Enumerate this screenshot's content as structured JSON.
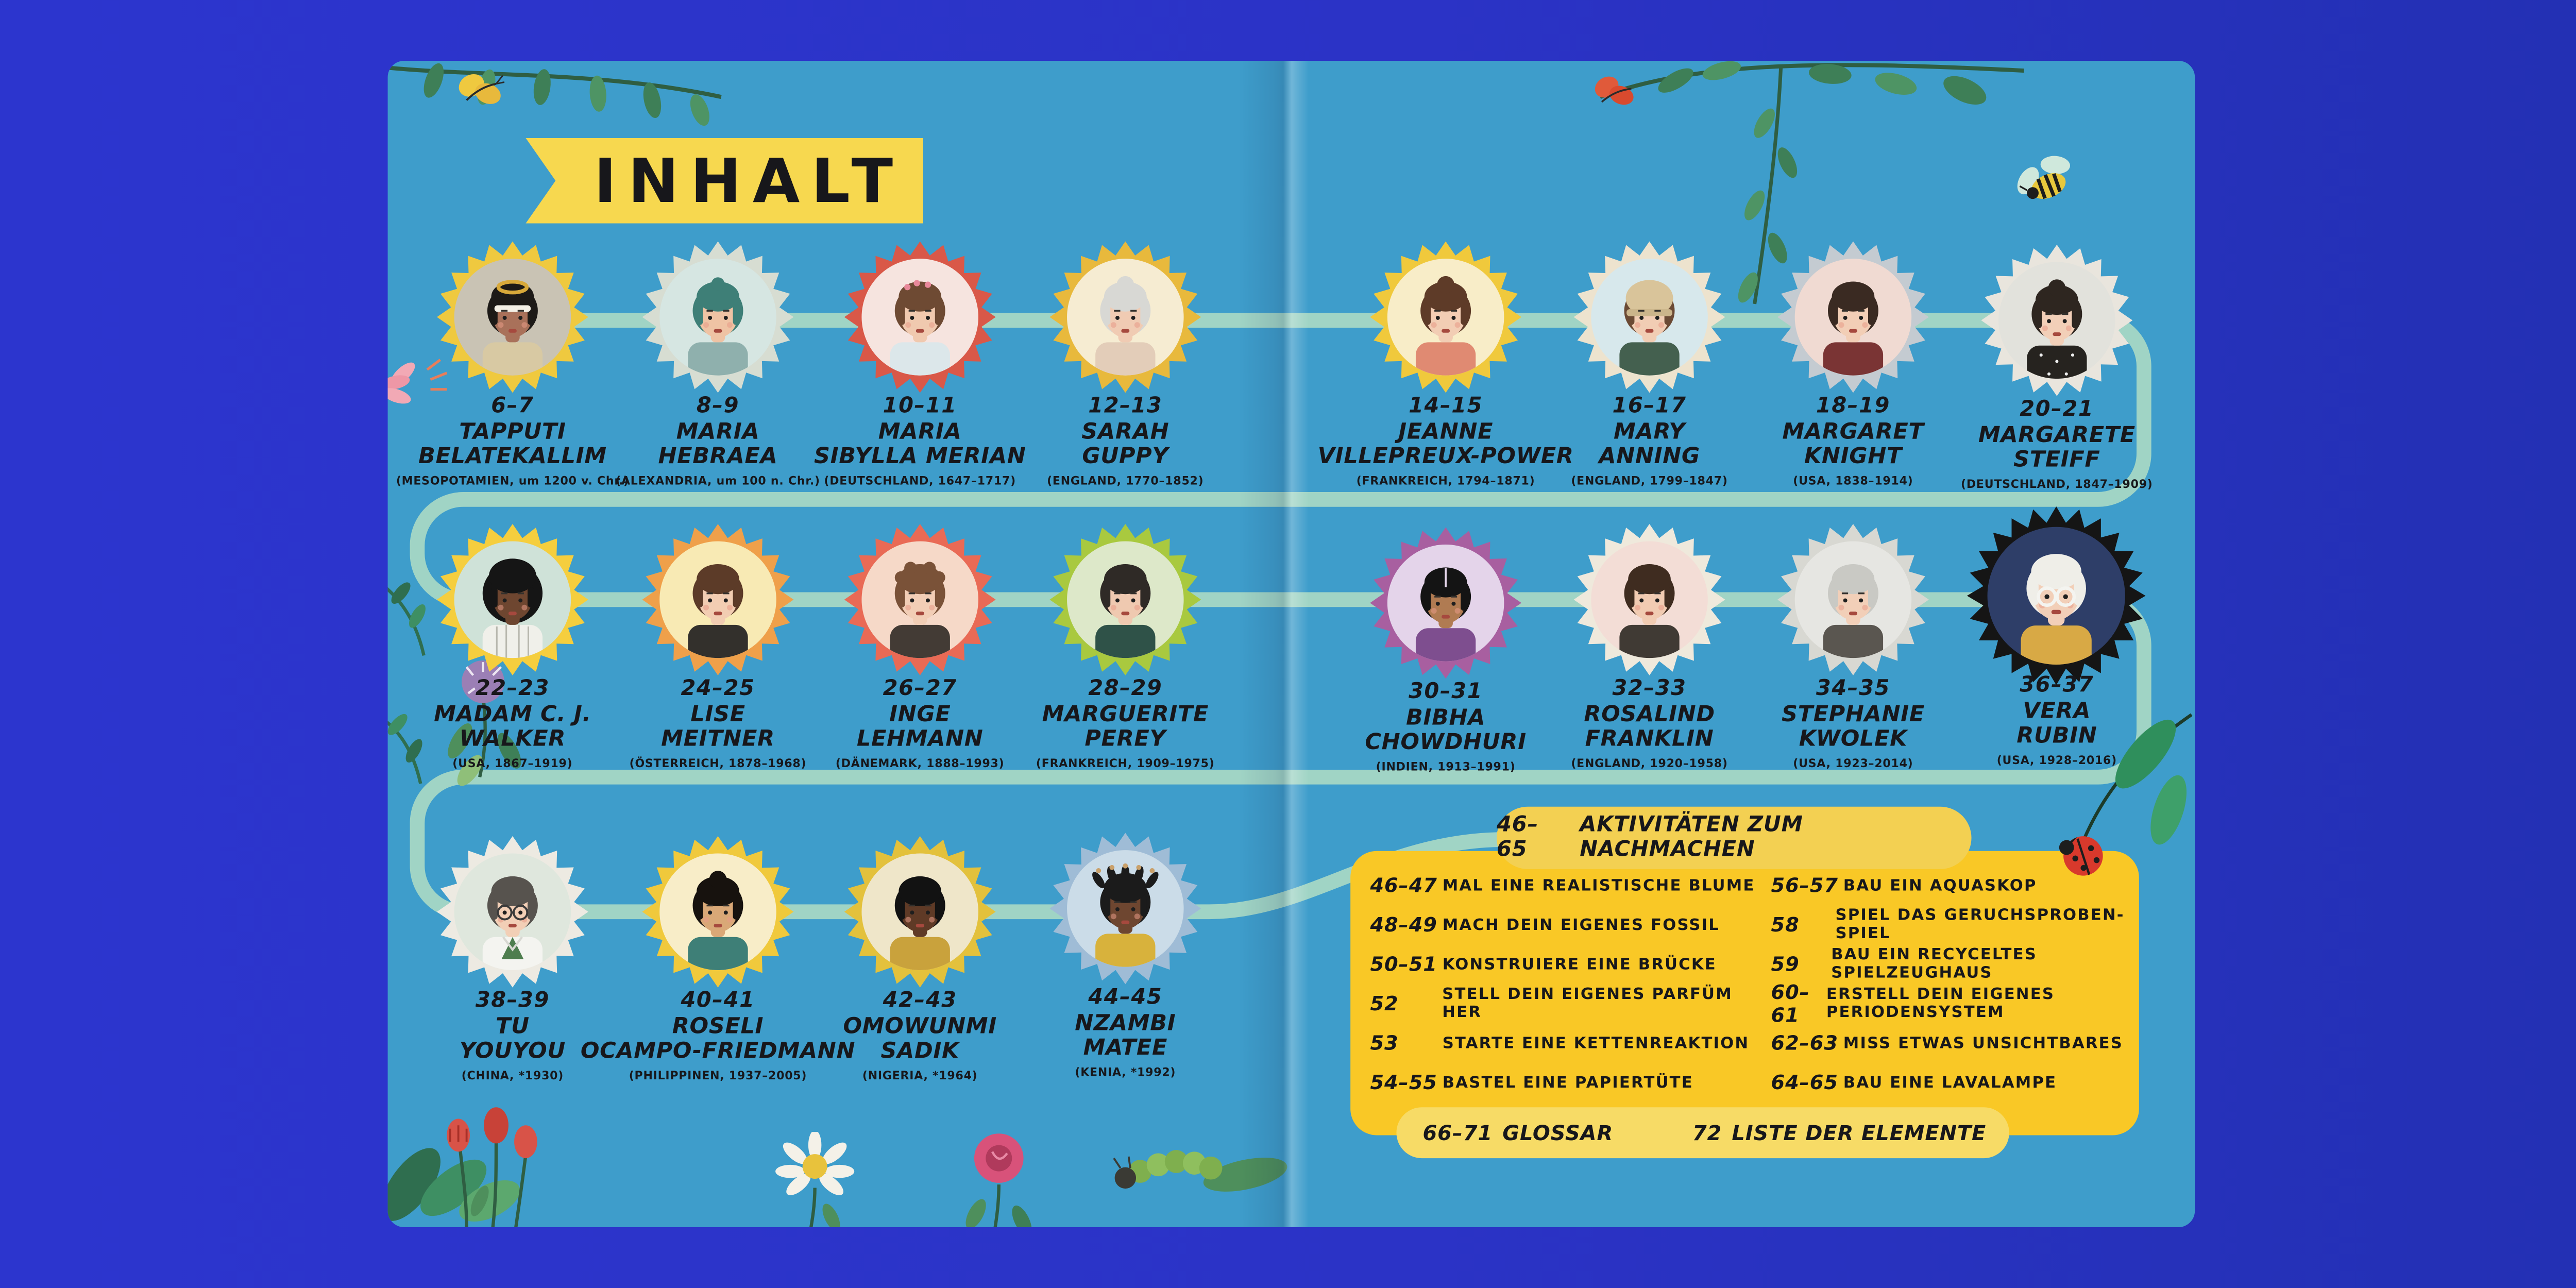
{
  "title_banner": {
    "label": "INHALT"
  },
  "people": [
    {
      "pages": "6–7",
      "name": "TAPPUTI BELATEKALLIM",
      "caption": "(MESOPOTAMIEN, um 1200 v. Chr.)"
    },
    {
      "pages": "8–9",
      "name": "MARIA HEBRAEA",
      "caption": "(ALEXANDRIA, um 100 n. Chr.)"
    },
    {
      "pages": "10–11",
      "name": "MARIA SIBYLLA MERIAN",
      "caption": "(DEUTSCHLAND, 1647–1717)"
    },
    {
      "pages": "12–13",
      "name": "SARAH GUPPY",
      "caption": "(ENGLAND, 1770–1852)"
    },
    {
      "pages": "14–15",
      "name": "JEANNE VILLEPREUX-POWER",
      "caption": "(FRANKREICH, 1794–1871)"
    },
    {
      "pages": "16–17",
      "name": "MARY ANNING",
      "caption": "(ENGLAND, 1799–1847)"
    },
    {
      "pages": "18–19",
      "name": "MARGARET KNIGHT",
      "caption": "(USA, 1838–1914)"
    },
    {
      "pages": "20–21",
      "name": "MARGARETE STEIFF",
      "caption": "(DEUTSCHLAND, 1847–1909)"
    },
    {
      "pages": "22–23",
      "name": "MADAM C. J. WALKER",
      "caption": "(USA, 1867–1919)"
    },
    {
      "pages": "24–25",
      "name": "LISE MEITNER",
      "caption": "(ÖSTERREICH, 1878–1968)"
    },
    {
      "pages": "26–27",
      "name": "INGE LEHMANN",
      "caption": "(DÄNEMARK, 1888–1993)"
    },
    {
      "pages": "28–29",
      "name": "MARGUERITE PEREY",
      "caption": "(FRANKREICH, 1909–1975)"
    },
    {
      "pages": "30–31",
      "name": "BIBHA CHOWDHURI",
      "caption": "(INDIEN, 1913–1991)"
    },
    {
      "pages": "32–33",
      "name": "ROSALIND FRANKLIN",
      "caption": "(ENGLAND, 1920–1958)"
    },
    {
      "pages": "34–35",
      "name": "STEPHANIE KWOLEK",
      "caption": "(USA, 1923–2014)"
    },
    {
      "pages": "36–37",
      "name": "VERA RUBIN",
      "caption": "(USA, 1928–2016)"
    },
    {
      "pages": "38–39",
      "name": "TU YOUYOU",
      "caption": "(CHINA, *1930)"
    },
    {
      "pages": "40–41",
      "name": "ROSELI OCAMPO-FRIEDMANN",
      "caption": "(PHILIPPINEN, 1937–2005)"
    },
    {
      "pages": "42–43",
      "name": "OMOWUNMI SADIK",
      "caption": "(NIGERIA, *1964)"
    },
    {
      "pages": "44–45",
      "name": "NZAMBI MATEE",
      "caption": "(KENIA, *1992)"
    }
  ],
  "activities_box": {
    "header": {
      "pages": "46–65",
      "title": "AKTIVITÄTEN ZUM NACHMACHEN"
    },
    "left_column": [
      {
        "pages": "46–47",
        "title": "MAL EINE REALISTISCHE BLUME"
      },
      {
        "pages": "48–49",
        "title": "MACH DEIN EIGENES FOSSIL"
      },
      {
        "pages": "50–51",
        "title": "KONSTRUIERE EINE BRÜCKE"
      },
      {
        "pages": "52",
        "title": "STELL DEIN EIGENES PARFÜM HER"
      },
      {
        "pages": "53",
        "title": "STARTE EINE KETTENREAKTION"
      },
      {
        "pages": "54–55",
        "title": "BASTEL EINE PAPIERTÜTE"
      }
    ],
    "right_column": [
      {
        "pages": "56–57",
        "title": "BAU EIN AQUASKOP"
      },
      {
        "pages": "58",
        "title": "SPIEL DAS GERUCHSPROBEN-SPIEL"
      },
      {
        "pages": "59",
        "title": "BAU EIN RECYCELTES SPIELZEUGHAUS"
      },
      {
        "pages": "60–61",
        "title": "ERSTELL DEIN EIGENES PERIODENSYSTEM"
      },
      {
        "pages": "62–63",
        "title": "MISS ETWAS UNSICHTBARES"
      },
      {
        "pages": "64–65",
        "title": "BAU EINE LAVALAMPE"
      }
    ]
  },
  "footer_bar": {
    "glossar": {
      "pages": "66–71",
      "label": "GLOSSAR"
    },
    "elements": {
      "pages": "72",
      "label": "LISTE DER ELEMENTE"
    }
  },
  "colors": {
    "backdrop": "#2B33C6",
    "page_blue": "#3E9DCB",
    "banner_yellow": "#F7D84F",
    "box_yellow": "#F9C826",
    "pill_yellow": "#F3D052",
    "footer_pill_yellow": "#F7DB66",
    "timeline_mint": "#A8D9C4",
    "text": "#17171B"
  },
  "decorations": [
    "yellow-butterfly",
    "red-butterfly",
    "bee",
    "top-left-vine",
    "top-right-vine",
    "ladybug-on-leaf",
    "caterpillar",
    "red-tulips",
    "daisy",
    "pink-bloom",
    "purple-flower",
    "left-sprigs",
    "corner-leaves",
    "bottom-sprig",
    "pink-fan-flower"
  ]
}
